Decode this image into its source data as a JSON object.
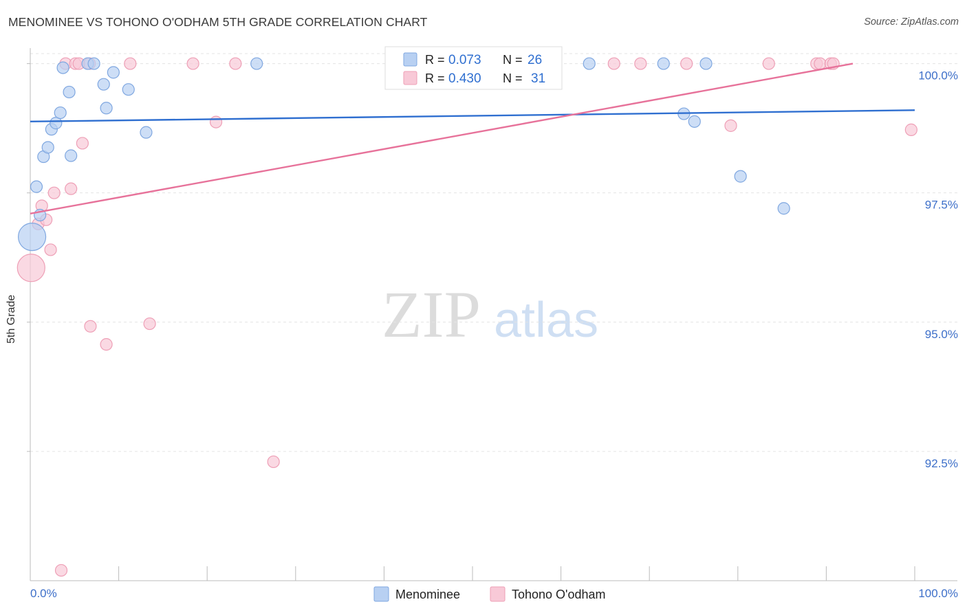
{
  "title": "MENOMINEE VS TOHONO O'ODHAM 5TH GRADE CORRELATION CHART",
  "source": "Source: ZipAtlas.com",
  "watermark": {
    "zip": "ZIP",
    "atlas": "atlas"
  },
  "legend": {
    "row1": {
      "r_label": "R =",
      "r_value": "0.073",
      "n_label": "N =",
      "n_value": "26"
    },
    "row2": {
      "r_label": "R =",
      "r_value": "0.430",
      "n_label": "N =",
      "n_value": "31"
    }
  },
  "colors": {
    "blue_fill": "#b8d0f2",
    "blue_stroke": "#7fa7e0",
    "blue_line": "#2f6fd0",
    "pink_fill": "#f8c9d7",
    "pink_stroke": "#ee9fb6",
    "pink_line": "#e7729a",
    "tick": "#3d6fc9",
    "grid": "#e3e3e3"
  },
  "chart_data": {
    "type": "scatter",
    "ylabel": "5th Grade",
    "xlim": [
      0,
      100
    ],
    "ylim": [
      90.0,
      100.3
    ],
    "x_tick_labels": [
      "0.0%",
      "100.0%"
    ],
    "y_ticks": [
      92.5,
      95.0,
      97.5,
      100.0
    ],
    "y_tick_labels": [
      "92.5%",
      "95.0%",
      "97.5%",
      "100.0%"
    ],
    "series": [
      {
        "name": "Menominee",
        "color": "blue",
        "trend": {
          "x": [
            0,
            100
          ],
          "y": [
            98.88,
            99.1
          ]
        },
        "points": [
          {
            "x": 0.2,
            "y": 96.65,
            "big": true
          },
          {
            "x": 0.7,
            "y": 97.62
          },
          {
            "x": 1.1,
            "y": 97.07
          },
          {
            "x": 1.5,
            "y": 98.2
          },
          {
            "x": 2.0,
            "y": 98.38
          },
          {
            "x": 2.4,
            "y": 98.73
          },
          {
            "x": 2.9,
            "y": 98.85
          },
          {
            "x": 3.4,
            "y": 99.05
          },
          {
            "x": 3.7,
            "y": 99.92
          },
          {
            "x": 4.4,
            "y": 99.45
          },
          {
            "x": 4.6,
            "y": 98.22
          },
          {
            "x": 6.5,
            "y": 100.0
          },
          {
            "x": 7.2,
            "y": 100.0
          },
          {
            "x": 8.3,
            "y": 99.6
          },
          {
            "x": 8.6,
            "y": 99.14
          },
          {
            "x": 9.4,
            "y": 99.83
          },
          {
            "x": 11.1,
            "y": 99.5
          },
          {
            "x": 13.1,
            "y": 98.67
          },
          {
            "x": 25.6,
            "y": 100.0
          },
          {
            "x": 63.2,
            "y": 100.0
          },
          {
            "x": 71.6,
            "y": 100.0
          },
          {
            "x": 73.9,
            "y": 99.03
          },
          {
            "x": 75.1,
            "y": 98.88
          },
          {
            "x": 76.4,
            "y": 100.0
          },
          {
            "x": 80.3,
            "y": 97.82
          },
          {
            "x": 85.2,
            "y": 97.2
          }
        ]
      },
      {
        "name": "Tohono O'odham",
        "color": "pink",
        "trend": {
          "x": [
            0,
            93
          ],
          "y": [
            97.1,
            100.0
          ]
        },
        "points": [
          {
            "x": 0.1,
            "y": 96.05,
            "big": true
          },
          {
            "x": 0.9,
            "y": 96.9
          },
          {
            "x": 1.3,
            "y": 97.25
          },
          {
            "x": 1.8,
            "y": 96.98
          },
          {
            "x": 2.3,
            "y": 96.4
          },
          {
            "x": 2.7,
            "y": 97.5
          },
          {
            "x": 3.5,
            "y": 90.2
          },
          {
            "x": 4.0,
            "y": 100.0
          },
          {
            "x": 4.6,
            "y": 97.58
          },
          {
            "x": 5.1,
            "y": 100.0
          },
          {
            "x": 5.5,
            "y": 100.0
          },
          {
            "x": 5.9,
            "y": 98.46
          },
          {
            "x": 6.7,
            "y": 100.0
          },
          {
            "x": 6.8,
            "y": 94.92
          },
          {
            "x": 8.6,
            "y": 94.57
          },
          {
            "x": 11.3,
            "y": 100.0
          },
          {
            "x": 13.5,
            "y": 94.97
          },
          {
            "x": 18.4,
            "y": 100.0
          },
          {
            "x": 21.0,
            "y": 98.87
          },
          {
            "x": 23.2,
            "y": 100.0
          },
          {
            "x": 27.5,
            "y": 92.3
          },
          {
            "x": 66.0,
            "y": 100.0
          },
          {
            "x": 69.0,
            "y": 100.0
          },
          {
            "x": 74.2,
            "y": 100.0
          },
          {
            "x": 79.2,
            "y": 98.8
          },
          {
            "x": 83.5,
            "y": 100.0
          },
          {
            "x": 88.9,
            "y": 100.0
          },
          {
            "x": 89.3,
            "y": 100.0
          },
          {
            "x": 90.5,
            "y": 100.0
          },
          {
            "x": 90.8,
            "y": 100.0
          },
          {
            "x": 99.6,
            "y": 98.72
          }
        ]
      }
    ]
  }
}
